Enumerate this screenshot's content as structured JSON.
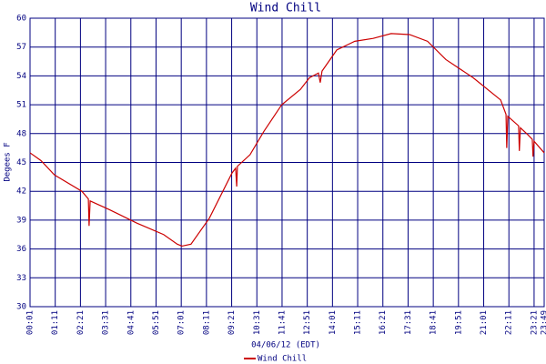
{
  "chart_data": {
    "type": "line",
    "title": "Wind Chill",
    "x_label": "04/06/12 (EDT)",
    "y_label": "Degees F",
    "x": [
      1,
      31,
      69,
      145,
      163,
      165,
      168,
      221,
      297,
      372,
      410,
      423,
      448,
      499,
      562,
      572,
      575,
      577,
      612,
      650,
      700,
      752,
      777,
      802,
      807,
      812,
      853,
      903,
      954,
      1004,
      1055,
      1105,
      1156,
      1232,
      1308,
      1323,
      1325,
      1328,
      1358,
      1360,
      1363,
      1383,
      1396,
      1398,
      1401,
      1429
    ],
    "series": [
      {
        "name": "Wind Chill",
        "color": "#cc0000",
        "values": [
          46.0,
          45.2,
          43.7,
          42.0,
          41.2,
          38.4,
          41.0,
          40.1,
          38.7,
          37.5,
          36.5,
          36.3,
          36.5,
          39.2,
          43.9,
          44.4,
          42.5,
          44.6,
          45.8,
          48.2,
          51.0,
          52.6,
          53.8,
          54.3,
          53.3,
          54.5,
          56.7,
          57.6,
          57.9,
          58.4,
          58.3,
          57.6,
          55.7,
          53.8,
          51.5,
          50.0,
          46.5,
          49.8,
          48.8,
          46.2,
          48.6,
          47.9,
          47.4,
          45.6,
          47.2,
          46.0
        ]
      }
    ],
    "xlim": [
      1,
      1429
    ],
    "xticks": [
      {
        "value": 1,
        "label": "00:01"
      },
      {
        "value": 71,
        "label": "01:11"
      },
      {
        "value": 141,
        "label": "02:21"
      },
      {
        "value": 211,
        "label": "03:31"
      },
      {
        "value": 281,
        "label": "04:41"
      },
      {
        "value": 351,
        "label": "05:51"
      },
      {
        "value": 421,
        "label": "07:01"
      },
      {
        "value": 491,
        "label": "08:11"
      },
      {
        "value": 561,
        "label": "09:21"
      },
      {
        "value": 631,
        "label": "10:31"
      },
      {
        "value": 701,
        "label": "11:41"
      },
      {
        "value": 771,
        "label": "12:51"
      },
      {
        "value": 841,
        "label": "14:01"
      },
      {
        "value": 911,
        "label": "15:11"
      },
      {
        "value": 981,
        "label": "16:21"
      },
      {
        "value": 1051,
        "label": "17:31"
      },
      {
        "value": 1121,
        "label": "18:41"
      },
      {
        "value": 1191,
        "label": "19:51"
      },
      {
        "value": 1261,
        "label": "21:01"
      },
      {
        "value": 1331,
        "label": "22:11"
      },
      {
        "value": 1401,
        "label": "23:21"
      },
      {
        "value": 1429,
        "label": "23:49"
      }
    ],
    "ylim": [
      30,
      60
    ],
    "yticks": [
      30,
      33,
      36,
      39,
      42,
      45,
      48,
      51,
      54,
      57,
      60
    ],
    "grid": true,
    "grid_color": "#000080"
  }
}
